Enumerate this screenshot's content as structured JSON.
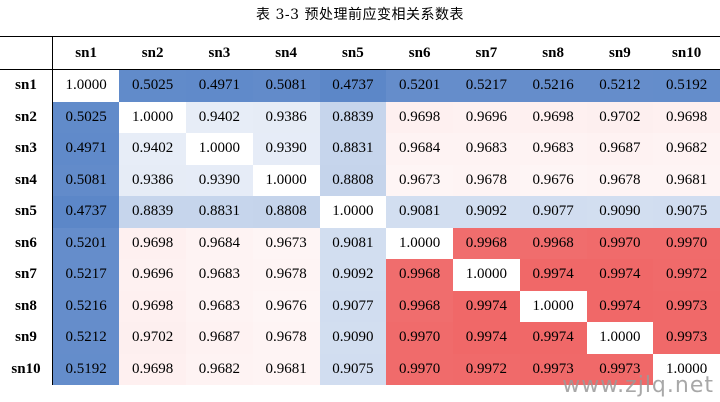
{
  "caption": "表 3-3 预处理前应变相关系数表",
  "headers": [
    "sn1",
    "sn2",
    "sn3",
    "sn4",
    "sn5",
    "sn6",
    "sn7",
    "sn8",
    "sn9",
    "sn10"
  ],
  "rows": [
    {
      "label": "sn1",
      "values": [
        "1.0000",
        "0.5025",
        "0.4971",
        "0.5081",
        "0.4737",
        "0.5201",
        "0.5217",
        "0.5216",
        "0.5212",
        "0.5192"
      ]
    },
    {
      "label": "sn2",
      "values": [
        "0.5025",
        "1.0000",
        "0.9402",
        "0.9386",
        "0.8839",
        "0.9698",
        "0.9696",
        "0.9698",
        "0.9702",
        "0.9698"
      ]
    },
    {
      "label": "sn3",
      "values": [
        "0.4971",
        "0.9402",
        "1.0000",
        "0.9390",
        "0.8831",
        "0.9684",
        "0.9683",
        "0.9683",
        "0.9687",
        "0.9682"
      ]
    },
    {
      "label": "sn4",
      "values": [
        "0.5081",
        "0.9386",
        "0.9390",
        "1.0000",
        "0.8808",
        "0.9673",
        "0.9678",
        "0.9676",
        "0.9678",
        "0.9681"
      ]
    },
    {
      "label": "sn5",
      "values": [
        "0.4737",
        "0.8839",
        "0.8831",
        "0.8808",
        "1.0000",
        "0.9081",
        "0.9092",
        "0.9077",
        "0.9090",
        "0.9075"
      ]
    },
    {
      "label": "sn6",
      "values": [
        "0.5201",
        "0.9698",
        "0.9684",
        "0.9673",
        "0.9081",
        "1.0000",
        "0.9968",
        "0.9968",
        "0.9970",
        "0.9970"
      ]
    },
    {
      "label": "sn7",
      "values": [
        "0.5217",
        "0.9696",
        "0.9683",
        "0.9678",
        "0.9092",
        "0.9968",
        "1.0000",
        "0.9974",
        "0.9974",
        "0.9972"
      ]
    },
    {
      "label": "sn8",
      "values": [
        "0.5216",
        "0.9698",
        "0.9683",
        "0.9676",
        "0.9077",
        "0.9968",
        "0.9974",
        "1.0000",
        "0.9974",
        "0.9973"
      ]
    },
    {
      "label": "sn9",
      "values": [
        "0.5212",
        "0.9702",
        "0.9687",
        "0.9678",
        "0.9090",
        "0.9970",
        "0.9974",
        "0.9974",
        "1.0000",
        "0.9973"
      ]
    },
    {
      "label": "sn10",
      "values": [
        "0.5192",
        "0.9698",
        "0.9682",
        "0.9681",
        "0.9075",
        "0.9970",
        "0.9972",
        "0.9973",
        "0.9973",
        "1.0000"
      ]
    }
  ],
  "colors": {
    "low": "#5b86c8",
    "high": "#f06868",
    "diagonal": "#ffffff"
  },
  "watermark": "www.zjlq.net"
}
